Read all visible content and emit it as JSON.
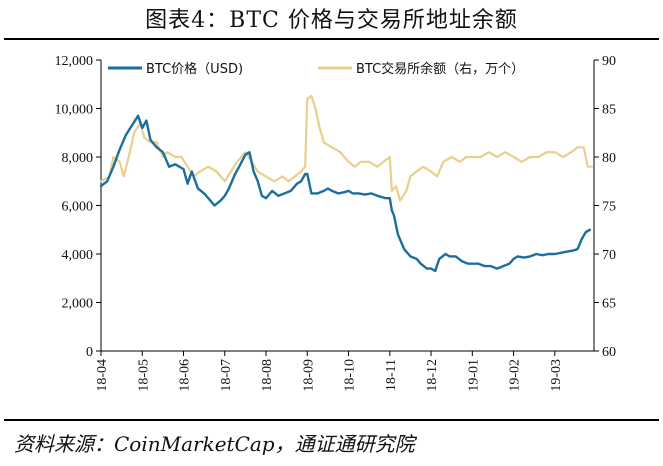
{
  "title": "图表4：BTC 价格与交易所地址余额",
  "source": "资料来源：CoinMarketCap，通证通研究院",
  "chart_data": {
    "type": "line",
    "categories": [
      "18-04",
      "18-05",
      "18-06",
      "18-07",
      "18-08",
      "18-09",
      "18-10",
      "18-11",
      "18-12",
      "19-01",
      "19-02",
      "19-03"
    ],
    "y_left": {
      "ylim": [
        0,
        12000
      ],
      "ticks": [
        "0",
        "2,000",
        "4,000",
        "6,000",
        "8,000",
        "10,000",
        "12,000"
      ]
    },
    "y_right": {
      "ylim": [
        60,
        90
      ],
      "ticks": [
        "60",
        "65",
        "70",
        "75",
        "80",
        "85",
        "90"
      ]
    },
    "grid": false,
    "legend_position": "top",
    "series": [
      {
        "name": "BTC价格（USD)",
        "axis": "left",
        "color": "#1a6f9e",
        "points": [
          [
            0.0,
            6800
          ],
          [
            0.15,
            7000
          ],
          [
            0.3,
            7600
          ],
          [
            0.45,
            8300
          ],
          [
            0.6,
            8900
          ],
          [
            0.75,
            9300
          ],
          [
            0.9,
            9700
          ],
          [
            1.0,
            9200
          ],
          [
            1.1,
            9500
          ],
          [
            1.2,
            8700
          ],
          [
            1.35,
            8400
          ],
          [
            1.5,
            8200
          ],
          [
            1.65,
            7600
          ],
          [
            1.8,
            7700
          ],
          [
            2.0,
            7500
          ],
          [
            2.1,
            6900
          ],
          [
            2.2,
            7400
          ],
          [
            2.35,
            6700
          ],
          [
            2.5,
            6500
          ],
          [
            2.6,
            6300
          ],
          [
            2.75,
            6000
          ],
          [
            2.9,
            6200
          ],
          [
            3.0,
            6400
          ],
          [
            3.1,
            6700
          ],
          [
            3.25,
            7300
          ],
          [
            3.35,
            7600
          ],
          [
            3.5,
            8100
          ],
          [
            3.6,
            8200
          ],
          [
            3.7,
            7400
          ],
          [
            3.8,
            7000
          ],
          [
            3.9,
            6400
          ],
          [
            4.0,
            6300
          ],
          [
            4.15,
            6600
          ],
          [
            4.3,
            6400
          ],
          [
            4.45,
            6500
          ],
          [
            4.6,
            6600
          ],
          [
            4.75,
            6900
          ],
          [
            4.85,
            7000
          ],
          [
            4.95,
            7300
          ],
          [
            5.0,
            7300
          ],
          [
            5.1,
            6500
          ],
          [
            5.25,
            6500
          ],
          [
            5.4,
            6600
          ],
          [
            5.5,
            6700
          ],
          [
            5.6,
            6600
          ],
          [
            5.75,
            6500
          ],
          [
            5.9,
            6550
          ],
          [
            6.0,
            6600
          ],
          [
            6.1,
            6500
          ],
          [
            6.25,
            6500
          ],
          [
            6.4,
            6450
          ],
          [
            6.55,
            6500
          ],
          [
            6.7,
            6400
          ],
          [
            6.8,
            6350
          ],
          [
            6.9,
            6300
          ],
          [
            7.0,
            6300
          ],
          [
            7.05,
            5800
          ],
          [
            7.1,
            5600
          ],
          [
            7.2,
            4800
          ],
          [
            7.35,
            4200
          ],
          [
            7.5,
            3900
          ],
          [
            7.65,
            3800
          ],
          [
            7.75,
            3600
          ],
          [
            7.9,
            3400
          ],
          [
            8.0,
            3400
          ],
          [
            8.1,
            3300
          ],
          [
            8.2,
            3800
          ],
          [
            8.35,
            4000
          ],
          [
            8.45,
            3900
          ],
          [
            8.6,
            3900
          ],
          [
            8.75,
            3700
          ],
          [
            8.9,
            3600
          ],
          [
            9.0,
            3600
          ],
          [
            9.15,
            3600
          ],
          [
            9.3,
            3500
          ],
          [
            9.45,
            3500
          ],
          [
            9.6,
            3400
          ],
          [
            9.75,
            3500
          ],
          [
            9.9,
            3600
          ],
          [
            10.0,
            3800
          ],
          [
            10.1,
            3900
          ],
          [
            10.25,
            3850
          ],
          [
            10.4,
            3900
          ],
          [
            10.55,
            4000
          ],
          [
            10.7,
            3950
          ],
          [
            10.85,
            4000
          ],
          [
            11.0,
            4000
          ],
          [
            11.15,
            4050
          ],
          [
            11.3,
            4100
          ],
          [
            11.45,
            4150
          ],
          [
            11.55,
            4200
          ],
          [
            11.65,
            4600
          ],
          [
            11.75,
            4900
          ],
          [
            11.85,
            5000
          ]
        ]
      },
      {
        "name": "BTC交易所余额（右，万个）",
        "axis": "right",
        "color": "#e9cf8c",
        "points": [
          [
            0.0,
            77.5
          ],
          [
            0.2,
            78.0
          ],
          [
            0.3,
            80.0
          ],
          [
            0.45,
            79.5
          ],
          [
            0.55,
            78.0
          ],
          [
            0.7,
            80.5
          ],
          [
            0.8,
            82.5
          ],
          [
            0.95,
            83.5
          ],
          [
            1.05,
            82.0
          ],
          [
            1.2,
            81.5
          ],
          [
            1.35,
            81.5
          ],
          [
            1.5,
            80.0
          ],
          [
            1.6,
            80.5
          ],
          [
            1.8,
            80.0
          ],
          [
            1.95,
            80.0
          ],
          [
            2.1,
            79.0
          ],
          [
            2.25,
            78.0
          ],
          [
            2.4,
            78.5
          ],
          [
            2.6,
            79.0
          ],
          [
            2.8,
            78.5
          ],
          [
            3.0,
            77.5
          ],
          [
            3.15,
            78.5
          ],
          [
            3.3,
            79.5
          ],
          [
            3.5,
            80.5
          ],
          [
            3.65,
            79.5
          ],
          [
            3.8,
            78.5
          ],
          [
            4.0,
            78.0
          ],
          [
            4.2,
            77.5
          ],
          [
            4.4,
            78.0
          ],
          [
            4.55,
            77.5
          ],
          [
            4.7,
            78.0
          ],
          [
            4.85,
            78.5
          ],
          [
            4.95,
            79.0
          ],
          [
            5.0,
            86.0
          ],
          [
            5.1,
            86.3
          ],
          [
            5.2,
            85.0
          ],
          [
            5.3,
            83.0
          ],
          [
            5.4,
            81.5
          ],
          [
            5.6,
            81.0
          ],
          [
            5.8,
            80.5
          ],
          [
            6.0,
            79.5
          ],
          [
            6.15,
            79.0
          ],
          [
            6.3,
            79.5
          ],
          [
            6.5,
            79.5
          ],
          [
            6.7,
            79.0
          ],
          [
            6.85,
            79.5
          ],
          [
            7.0,
            80.0
          ],
          [
            7.05,
            76.5
          ],
          [
            7.15,
            77.0
          ],
          [
            7.25,
            75.5
          ],
          [
            7.4,
            76.5
          ],
          [
            7.5,
            78.0
          ],
          [
            7.65,
            78.5
          ],
          [
            7.8,
            79.0
          ],
          [
            8.0,
            78.5
          ],
          [
            8.15,
            78.0
          ],
          [
            8.3,
            79.5
          ],
          [
            8.5,
            80.0
          ],
          [
            8.7,
            79.5
          ],
          [
            8.85,
            80.0
          ],
          [
            9.0,
            80.0
          ],
          [
            9.2,
            80.0
          ],
          [
            9.4,
            80.5
          ],
          [
            9.6,
            80.0
          ],
          [
            9.8,
            80.5
          ],
          [
            10.0,
            80.0
          ],
          [
            10.2,
            79.5
          ],
          [
            10.4,
            80.0
          ],
          [
            10.6,
            80.0
          ],
          [
            10.8,
            80.5
          ],
          [
            11.0,
            80.5
          ],
          [
            11.2,
            80.0
          ],
          [
            11.4,
            80.5
          ],
          [
            11.55,
            81.0
          ],
          [
            11.7,
            81.0
          ],
          [
            11.8,
            79.0
          ],
          [
            11.9,
            79.0
          ]
        ]
      }
    ]
  }
}
